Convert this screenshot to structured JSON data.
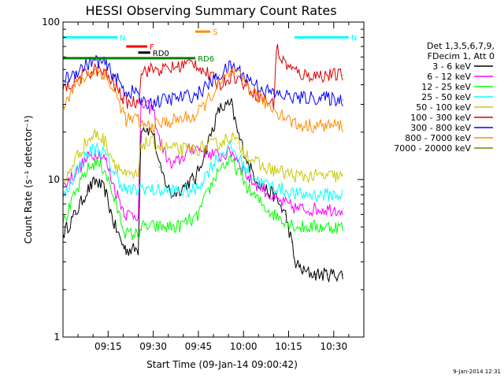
{
  "chart_data": {
    "type": "line",
    "title": "HESSI Observing Summary Count Rates",
    "xlabel": "Start Time (09-Jan-14 09:00:42)",
    "ylabel": "Count Rate (s⁻¹ detector⁻¹)",
    "y_scale": "log",
    "ylim": [
      1,
      100
    ],
    "xlim_minutes": [
      0,
      100
    ],
    "x_ticks": [
      {
        "label": "09:15",
        "t": 15
      },
      {
        "label": "09:30",
        "t": 30
      },
      {
        "label": "09:45",
        "t": 45
      },
      {
        "label": "10:00",
        "t": 60
      },
      {
        "label": "10:15",
        "t": 75
      },
      {
        "label": "10:30",
        "t": 90
      }
    ],
    "y_ticks": [
      {
        "label": "1",
        "v": 1
      },
      {
        "label": "10",
        "v": 10
      },
      {
        "label": "100",
        "v": 100
      }
    ],
    "legend_header": [
      "Det 1,3,5,6,7,9,",
      "FDecim 1, Att 0"
    ],
    "legend_placement": "right",
    "series": [
      {
        "name": "3 - 6 keV",
        "color": "#000000",
        "points": [
          [
            0,
            4.5
          ],
          [
            4,
            6
          ],
          [
            8,
            8.5
          ],
          [
            11,
            9.8
          ],
          [
            14,
            8.5
          ],
          [
            17,
            5.2
          ],
          [
            20,
            3.8
          ],
          [
            21,
            3.6
          ],
          [
            25,
            3.6
          ],
          [
            26,
            22
          ],
          [
            30,
            20
          ],
          [
            32,
            12
          ],
          [
            36,
            8
          ],
          [
            40,
            9
          ],
          [
            43,
            10
          ],
          [
            44,
            10
          ],
          [
            52,
            28
          ],
          [
            56,
            30
          ],
          [
            58,
            20
          ],
          [
            62,
            12
          ],
          [
            66,
            9
          ],
          [
            70,
            8
          ],
          [
            74,
            6
          ],
          [
            76,
            4
          ],
          [
            77,
            3
          ],
          [
            80,
            2.6
          ],
          [
            84,
            2.5
          ],
          [
            88,
            2.5
          ],
          [
            93,
            2.5
          ]
        ]
      },
      {
        "name": "6 - 12 keV",
        "color": "#ff00ff",
        "points": [
          [
            0,
            9
          ],
          [
            4,
            11
          ],
          [
            8,
            13.5
          ],
          [
            11,
            15
          ],
          [
            14,
            13.5
          ],
          [
            17,
            9
          ],
          [
            20,
            6.5
          ],
          [
            21,
            6
          ],
          [
            25,
            6
          ],
          [
            26,
            30
          ],
          [
            30,
            28
          ],
          [
            32,
            18
          ],
          [
            36,
            12
          ],
          [
            40,
            14
          ],
          [
            43,
            16
          ],
          [
            44,
            16
          ],
          [
            52,
            14
          ],
          [
            56,
            15
          ],
          [
            58,
            13.5
          ],
          [
            62,
            10
          ],
          [
            66,
            9
          ],
          [
            70,
            7.5
          ],
          [
            74,
            7
          ],
          [
            78,
            6.5
          ],
          [
            82,
            6.5
          ],
          [
            86,
            6.5
          ],
          [
            93,
            6.5
          ]
        ]
      },
      {
        "name": "12 - 25 keV",
        "color": "#00ff00",
        "points": [
          [
            0,
            5.2
          ],
          [
            4,
            8
          ],
          [
            8,
            11.5
          ],
          [
            11,
            13
          ],
          [
            14,
            11.5
          ],
          [
            17,
            7.5
          ],
          [
            20,
            5
          ],
          [
            21,
            4.5
          ],
          [
            25,
            4.5
          ],
          [
            26,
            5
          ],
          [
            30,
            5
          ],
          [
            34,
            5
          ],
          [
            38,
            5
          ],
          [
            42,
            5.5
          ],
          [
            44,
            5.5
          ],
          [
            52,
            12
          ],
          [
            56,
            13
          ],
          [
            58,
            11.5
          ],
          [
            62,
            8.5
          ],
          [
            66,
            7
          ],
          [
            70,
            6
          ],
          [
            74,
            5.5
          ],
          [
            78,
            5
          ],
          [
            82,
            5
          ],
          [
            86,
            5
          ],
          [
            93,
            5
          ]
        ]
      },
      {
        "name": "25 - 50 keV",
        "color": "#00ffff",
        "points": [
          [
            0,
            7.5
          ],
          [
            4,
            11
          ],
          [
            8,
            14.5
          ],
          [
            11,
            16
          ],
          [
            14,
            14.5
          ],
          [
            17,
            11
          ],
          [
            20,
            9
          ],
          [
            21,
            8.5
          ],
          [
            25,
            8.5
          ],
          [
            26,
            9
          ],
          [
            30,
            8.5
          ],
          [
            34,
            8.5
          ],
          [
            38,
            8.5
          ],
          [
            42,
            8.5
          ],
          [
            44,
            8.5
          ],
          [
            52,
            14.5
          ],
          [
            56,
            16
          ],
          [
            58,
            14
          ],
          [
            62,
            11
          ],
          [
            66,
            9.5
          ],
          [
            70,
            9
          ],
          [
            74,
            8.5
          ],
          [
            78,
            8
          ],
          [
            82,
            8
          ],
          [
            86,
            8
          ],
          [
            93,
            8
          ]
        ]
      },
      {
        "name": "50 - 100 keV",
        "color": "#c8c800",
        "points": [
          [
            0,
            9
          ],
          [
            4,
            13.5
          ],
          [
            8,
            17.5
          ],
          [
            11,
            19.5
          ],
          [
            14,
            17.5
          ],
          [
            17,
            13
          ],
          [
            20,
            11
          ],
          [
            21,
            10.5
          ],
          [
            25,
            10.5
          ],
          [
            26,
            17
          ],
          [
            30,
            17
          ],
          [
            34,
            16
          ],
          [
            38,
            15.5
          ],
          [
            42,
            15.5
          ],
          [
            44,
            15.5
          ],
          [
            52,
            17
          ],
          [
            56,
            19
          ],
          [
            58,
            17
          ],
          [
            62,
            14
          ],
          [
            66,
            12
          ],
          [
            70,
            11.5
          ],
          [
            74,
            11
          ],
          [
            78,
            10.5
          ],
          [
            82,
            10.5
          ],
          [
            86,
            10.5
          ],
          [
            93,
            10.5
          ]
        ]
      },
      {
        "name": "100 - 300 keV",
        "color": "#dd0000",
        "points": [
          [
            0,
            37
          ],
          [
            4,
            42
          ],
          [
            8,
            47
          ],
          [
            11,
            50
          ],
          [
            14,
            47
          ],
          [
            17,
            40
          ],
          [
            20,
            33
          ],
          [
            21,
            31
          ],
          [
            25,
            31
          ],
          [
            26,
            49
          ],
          [
            30,
            50
          ],
          [
            34,
            50
          ],
          [
            38,
            52
          ],
          [
            42,
            55
          ],
          [
            44,
            55
          ],
          [
            52,
            40
          ],
          [
            56,
            46
          ],
          [
            58,
            44
          ],
          [
            62,
            38
          ],
          [
            66,
            33
          ],
          [
            70,
            30
          ],
          [
            71,
            70
          ],
          [
            72,
            60
          ],
          [
            76,
            50
          ],
          [
            80,
            46
          ],
          [
            84,
            46
          ],
          [
            88,
            46
          ],
          [
            93,
            46
          ]
        ]
      },
      {
        "name": "300 - 800 keV",
        "color": "#0000ff",
        "points": [
          [
            0,
            42
          ],
          [
            4,
            48
          ],
          [
            8,
            54
          ],
          [
            11,
            57
          ],
          [
            14,
            54
          ],
          [
            17,
            46
          ],
          [
            20,
            38
          ],
          [
            21,
            36
          ],
          [
            25,
            36
          ],
          [
            26,
            30
          ],
          [
            30,
            31
          ],
          [
            34,
            32
          ],
          [
            38,
            33
          ],
          [
            42,
            34
          ],
          [
            44,
            34
          ],
          [
            52,
            46
          ],
          [
            56,
            53
          ],
          [
            58,
            50
          ],
          [
            62,
            43
          ],
          [
            66,
            38
          ],
          [
            70,
            35
          ],
          [
            74,
            34
          ],
          [
            78,
            33
          ],
          [
            82,
            33
          ],
          [
            86,
            33
          ],
          [
            93,
            32
          ]
        ]
      },
      {
        "name": "800 - 7000 keV",
        "color": "#ff8c00",
        "points": [
          [
            0,
            30
          ],
          [
            4,
            39
          ],
          [
            8,
            46
          ],
          [
            11,
            50
          ],
          [
            14,
            46
          ],
          [
            17,
            36
          ],
          [
            20,
            27
          ],
          [
            21,
            24
          ],
          [
            25,
            24
          ],
          [
            26,
            22
          ],
          [
            30,
            22
          ],
          [
            34,
            23
          ],
          [
            38,
            24
          ],
          [
            42,
            25
          ],
          [
            44,
            25
          ],
          [
            52,
            40
          ],
          [
            56,
            48
          ],
          [
            58,
            46
          ],
          [
            62,
            38
          ],
          [
            66,
            32
          ],
          [
            70,
            28
          ],
          [
            74,
            25
          ],
          [
            78,
            22
          ],
          [
            82,
            22
          ],
          [
            86,
            22
          ],
          [
            93,
            22
          ]
        ]
      },
      {
        "name": "7000 - 20000 keV",
        "color": "#808000",
        "points": []
      }
    ],
    "annotations": [
      {
        "text": "N",
        "color": "#00ffff",
        "t_start": 0,
        "t_end": 18,
        "level": 80
      },
      {
        "text": "N",
        "color": "#00ffff",
        "t_start": 77,
        "t_end": 95,
        "level": 80
      },
      {
        "text": "F",
        "color": "#ff0000",
        "t_start": 21,
        "t_end": 28,
        "level": 70
      },
      {
        "text": "S",
        "color": "#ff8c00",
        "t_start": 44,
        "t_end": 49,
        "level": 87
      },
      {
        "text": "RD0",
        "color": "#000000",
        "t_start": 25,
        "t_end": 29,
        "level": 64
      },
      {
        "text": "RD6",
        "color": "#008000",
        "t_start": 0,
        "t_end": 44,
        "level": 59
      }
    ]
  },
  "footer": {
    "date_stamp": "9-Jan-2014 12:31"
  }
}
